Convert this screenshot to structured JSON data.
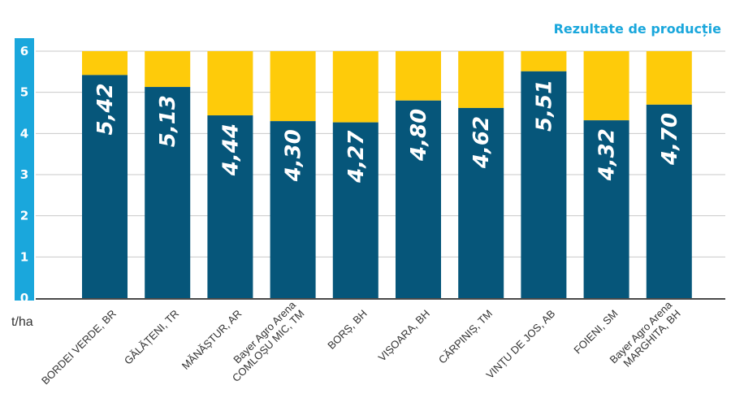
{
  "colors": {
    "axis_band": "#1aa7dc",
    "bar_value": "#06567a",
    "bar_rest": "#fecb0a",
    "grid": "#c9c9c9",
    "title": "#1aa7dc"
  },
  "chart_data": {
    "type": "bar",
    "title": "Rezultate de producție",
    "ylabel": "t/ha",
    "ylim": [
      0,
      6
    ],
    "yticks": [
      "0",
      "1",
      "2",
      "3",
      "4",
      "5",
      "6"
    ],
    "grid": true,
    "stacked_to_max": true,
    "categories": [
      [
        "BORDEI VERDE, BR"
      ],
      [
        "GĂLĂȚENI, TR"
      ],
      [
        "MĂNĂȘTUR, AR"
      ],
      [
        "Bayer Agro Arena",
        "COMLOȘU MIC, TM"
      ],
      [
        "BORȘ, BH"
      ],
      [
        "VIȘOARA, BH"
      ],
      [
        "CĂRPINIȘ, TM"
      ],
      [
        "VINȚU DE JOS, AB"
      ],
      [
        "FOIENI, SM"
      ],
      [
        "Bayer Agro Arena",
        "MARGHITA, BH"
      ]
    ],
    "values": [
      5.42,
      5.13,
      4.44,
      4.3,
      4.27,
      4.8,
      4.62,
      5.51,
      4.32,
      4.7
    ],
    "value_labels": [
      "5,42",
      "5,13",
      "4,44",
      "4,30",
      "4,27",
      "4,80",
      "4,62",
      "5,51",
      "4,32",
      "4,70"
    ]
  }
}
